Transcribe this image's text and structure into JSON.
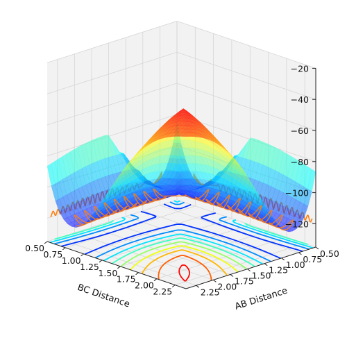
{
  "chart_data": {
    "type": "surface-3d",
    "title": "",
    "xlabel": "AB Distance",
    "ylabel": "BC Distance",
    "zlabel": "",
    "xlim": [
      0.5,
      2.4
    ],
    "ylim": [
      0.5,
      2.4
    ],
    "zlim": [
      -135,
      -20
    ],
    "x_ticks": [
      0.5,
      0.75,
      1.0,
      1.25,
      1.5,
      1.75,
      2.0,
      2.25
    ],
    "x_tick_labels": [
      "0.50",
      "0.75",
      "1.00",
      "1.25",
      "1.50",
      "1.75",
      "2.00",
      "2.25"
    ],
    "y_ticks": [
      0.5,
      0.75,
      1.0,
      1.25,
      1.5,
      1.75,
      2.0,
      2.25
    ],
    "y_tick_labels": [
      "0.50",
      "0.75",
      "1.00",
      "1.25",
      "1.50",
      "1.75",
      "2.00",
      "2.25"
    ],
    "z_ticks": [
      -120,
      -100,
      -80,
      -60,
      -40,
      -20
    ],
    "z_tick_labels": [
      "−120",
      "−100",
      "−80",
      "−60",
      "−40",
      "−20"
    ],
    "view": {
      "elevation_deg": 20,
      "azimuth_deg": 45
    },
    "surface": {
      "colormap": "jet",
      "alpha": 0.55,
      "clip_max_energy": -20,
      "description_values": {
        "reactant_valley_min": -120,
        "product_valley_min": -120,
        "saddle_point_energy": -80,
        "asymptote_energy": -20
      }
    },
    "contour_levels": [
      -125,
      -115,
      -105,
      -95,
      -85,
      -75,
      -65,
      -55,
      -45,
      -35,
      -25
    ],
    "trajectory": {
      "color": "#ff7f0e",
      "description": "vibrating trajectory across the surface and its projections on the walls"
    },
    "grid": true,
    "pane_color": "#f2f2f2"
  },
  "colors": {
    "trajectory": "#ff7f0e",
    "pane": "#f2f2f2",
    "grid": "#d6d6d6"
  }
}
